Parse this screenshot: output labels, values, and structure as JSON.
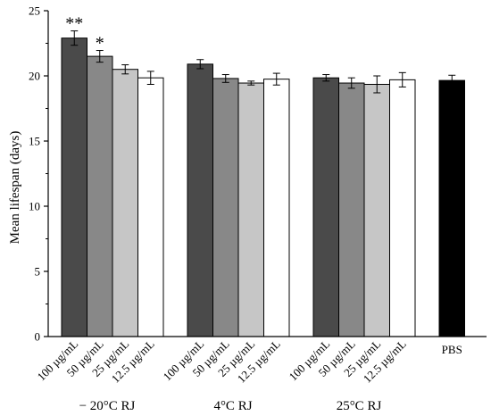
{
  "chart_data": {
    "type": "bar",
    "ylabel": "Mean lifespan (days)",
    "ylim": [
      0,
      25
    ],
    "yticks": [
      0,
      5,
      10,
      15,
      20,
      25
    ],
    "error_bars": true,
    "groups": [
      {
        "label": "− 20°C RJ",
        "bars": [
          {
            "category": "100 µg/mL",
            "value": 22.9,
            "error": 0.55,
            "color": "#4a4a4a",
            "significance": "**"
          },
          {
            "category": "50 µg/mL",
            "value": 21.5,
            "error": 0.45,
            "color": "#888888",
            "significance": "*"
          },
          {
            "category": "25 µg/mL",
            "value": 20.5,
            "error": 0.35,
            "color": "#c6c6c6",
            "significance": ""
          },
          {
            "category": "12.5 µg/mL",
            "value": 19.85,
            "error": 0.5,
            "color": "#ffffff",
            "significance": ""
          }
        ]
      },
      {
        "label": "4°C RJ",
        "bars": [
          {
            "category": "100 µg/mL",
            "value": 20.9,
            "error": 0.35,
            "color": "#4a4a4a",
            "significance": ""
          },
          {
            "category": "50 µg/mL",
            "value": 19.8,
            "error": 0.3,
            "color": "#888888",
            "significance": ""
          },
          {
            "category": "25 µg/mL",
            "value": 19.45,
            "error": 0.15,
            "color": "#c6c6c6",
            "significance": ""
          },
          {
            "category": "12.5 µg/mL",
            "value": 19.75,
            "error": 0.45,
            "color": "#ffffff",
            "significance": ""
          }
        ]
      },
      {
        "label": "25°C RJ",
        "bars": [
          {
            "category": "100 µg/mL",
            "value": 19.85,
            "error": 0.25,
            "color": "#4a4a4a",
            "significance": ""
          },
          {
            "category": "50 µg/mL",
            "value": 19.45,
            "error": 0.4,
            "color": "#888888",
            "significance": ""
          },
          {
            "category": "25 µg/mL",
            "value": 19.35,
            "error": 0.65,
            "color": "#c6c6c6",
            "significance": ""
          },
          {
            "category": "12.5 µg/mL",
            "value": 19.7,
            "error": 0.55,
            "color": "#ffffff",
            "significance": ""
          }
        ]
      },
      {
        "label": "",
        "bars": [
          {
            "category": "PBS",
            "value": 19.65,
            "error": 0.4,
            "color": "#000000",
            "significance": ""
          }
        ]
      }
    ]
  }
}
